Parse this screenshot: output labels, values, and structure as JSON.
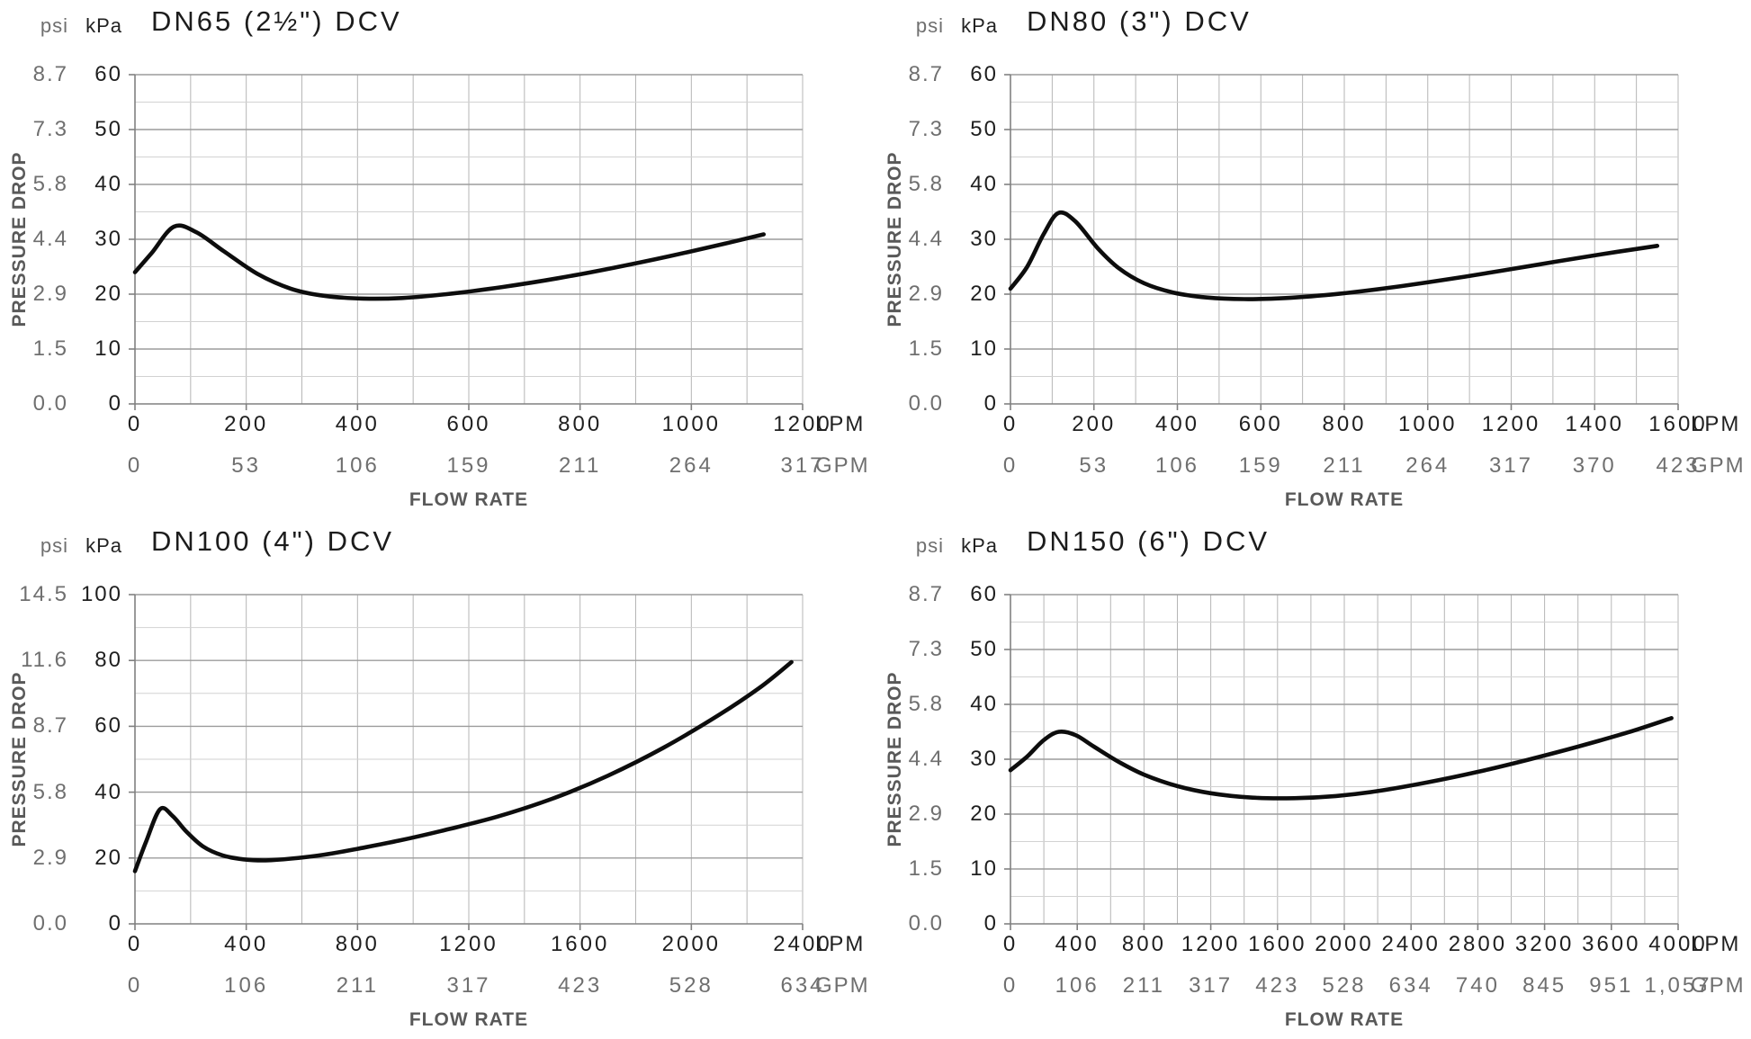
{
  "page": {
    "background": "#ffffff"
  },
  "shared": {
    "pressure_axis_label": "PRESSURE DROP",
    "flow_axis_label": "FLOW RATE",
    "psi_header": "psi",
    "kpa_header": "kPa",
    "lpm_unit": "LPM",
    "gpm_unit": "GPM",
    "colors": {
      "curve": "#0d0d0d",
      "major_grid": "#9c9c9c",
      "minor_grid": "#d2d2d2",
      "vertical_grid": "#b6b6b6",
      "axis": "#808080",
      "black_text": "#1f1f1f",
      "gray_text": "#6f6f6f",
      "axis_label_gray": "#595959"
    }
  },
  "chart_data": [
    {
      "type": "line",
      "title": "DN65 (2½\") DCV",
      "xlabel": "FLOW RATE",
      "ylabel": "PRESSURE DROP",
      "x_units": [
        "LPM",
        "GPM"
      ],
      "y_units": [
        "kPa",
        "psi"
      ],
      "xlim": [
        0,
        1200
      ],
      "ylim": [
        0,
        60
      ],
      "x_minor_step": 100,
      "y_major_step": 10,
      "y_minor_step": 5,
      "lpm_ticks": [
        0,
        200,
        400,
        600,
        800,
        1000,
        1200
      ],
      "gpm_ticks": [
        "0",
        "53",
        "106",
        "159",
        "211",
        "264",
        "317"
      ],
      "kpa_ticks": [
        "60",
        "50",
        "40",
        "30",
        "20",
        "10",
        "0"
      ],
      "psi_ticks": [
        "8.7",
        "7.3",
        "5.8",
        "4.4",
        "2.9",
        "1.5",
        "0.0"
      ],
      "series": [
        {
          "name": "pressure drop (kPa) vs flow (LPM)",
          "points": [
            [
              0,
              24
            ],
            [
              30,
              27.5
            ],
            [
              70,
              32.3
            ],
            [
              110,
              31.3
            ],
            [
              160,
              27.8
            ],
            [
              220,
              23.7
            ],
            [
              280,
              21
            ],
            [
              340,
              19.7
            ],
            [
              410,
              19.2
            ],
            [
              480,
              19.3
            ],
            [
              560,
              20
            ],
            [
              660,
              21.3
            ],
            [
              760,
              22.9
            ],
            [
              860,
              24.8
            ],
            [
              960,
              26.9
            ],
            [
              1060,
              29.2
            ],
            [
              1130,
              30.9
            ]
          ]
        }
      ]
    },
    {
      "type": "line",
      "title": "DN80 (3\") DCV",
      "xlabel": "FLOW RATE",
      "ylabel": "PRESSURE DROP",
      "x_units": [
        "LPM",
        "GPM"
      ],
      "y_units": [
        "kPa",
        "psi"
      ],
      "xlim": [
        0,
        1600
      ],
      "ylim": [
        0,
        60
      ],
      "x_minor_step": 100,
      "y_major_step": 10,
      "y_minor_step": 5,
      "lpm_ticks": [
        0,
        200,
        400,
        600,
        800,
        1000,
        1200,
        1400,
        1600
      ],
      "gpm_ticks": [
        "0",
        "53",
        "106",
        "159",
        "211",
        "264",
        "317",
        "370",
        "423"
      ],
      "kpa_ticks": [
        "60",
        "50",
        "40",
        "30",
        "20",
        "10",
        "0"
      ],
      "psi_ticks": [
        "8.7",
        "7.3",
        "5.8",
        "4.4",
        "2.9",
        "1.5",
        "0.0"
      ],
      "series": [
        {
          "name": "pressure drop (kPa) vs flow (LPM)",
          "points": [
            [
              0,
              21
            ],
            [
              40,
              25
            ],
            [
              80,
              31
            ],
            [
              115,
              34.8
            ],
            [
              155,
              33.3
            ],
            [
              210,
              28.3
            ],
            [
              260,
              24.7
            ],
            [
              320,
              22
            ],
            [
              390,
              20.3
            ],
            [
              470,
              19.4
            ],
            [
              560,
              19.1
            ],
            [
              660,
              19.3
            ],
            [
              790,
              20.1
            ],
            [
              930,
              21.4
            ],
            [
              1090,
              23.2
            ],
            [
              1250,
              25.2
            ],
            [
              1410,
              27.2
            ],
            [
              1550,
              28.8
            ]
          ]
        }
      ]
    },
    {
      "type": "line",
      "title": "DN100 (4\") DCV",
      "xlabel": "FLOW RATE",
      "ylabel": "PRESSURE DROP",
      "x_units": [
        "LPM",
        "GPM"
      ],
      "y_units": [
        "kPa",
        "psi"
      ],
      "xlim": [
        0,
        2400
      ],
      "ylim": [
        0,
        100
      ],
      "x_minor_step": 200,
      "y_major_step": 20,
      "y_minor_step": 10,
      "lpm_ticks": [
        0,
        400,
        800,
        1200,
        1600,
        2000,
        2400
      ],
      "gpm_ticks": [
        "0",
        "106",
        "211",
        "317",
        "423",
        "528",
        "634"
      ],
      "kpa_ticks": [
        "100",
        "80",
        "60",
        "40",
        "20",
        "0"
      ],
      "psi_ticks": [
        "14.5",
        "11.6",
        "8.7",
        "5.8",
        "2.9",
        "0.0"
      ],
      "series": [
        {
          "name": "pressure drop (kPa) vs flow (LPM)",
          "points": [
            [
              0,
              16
            ],
            [
              40,
              25
            ],
            [
              90,
              34.8
            ],
            [
              135,
              32.8
            ],
            [
              185,
              28
            ],
            [
              245,
              23.5
            ],
            [
              315,
              20.8
            ],
            [
              390,
              19.6
            ],
            [
              470,
              19.3
            ],
            [
              560,
              19.8
            ],
            [
              680,
              21
            ],
            [
              800,
              22.8
            ],
            [
              950,
              25.3
            ],
            [
              1100,
              28.2
            ],
            [
              1300,
              32.5
            ],
            [
              1500,
              38
            ],
            [
              1700,
              45
            ],
            [
              1900,
              53.5
            ],
            [
              2100,
              63.5
            ],
            [
              2250,
              72
            ],
            [
              2360,
              79.5
            ]
          ]
        }
      ]
    },
    {
      "type": "line",
      "title": "DN150 (6\") DCV",
      "xlabel": "FLOW RATE",
      "ylabel": "PRESSURE DROP",
      "x_units": [
        "LPM",
        "GPM"
      ],
      "y_units": [
        "kPa",
        "psi"
      ],
      "xlim": [
        0,
        4000
      ],
      "ylim": [
        0,
        60
      ],
      "x_minor_step": 200,
      "y_major_step": 10,
      "y_minor_step": 5,
      "lpm_ticks": [
        0,
        400,
        800,
        1200,
        1600,
        2000,
        2400,
        2800,
        3200,
        3600,
        4000
      ],
      "gpm_ticks": [
        "0",
        "106",
        "211",
        "317",
        "423",
        "528",
        "634",
        "740",
        "845",
        "951",
        "1,057"
      ],
      "kpa_ticks": [
        "60",
        "50",
        "40",
        "30",
        "20",
        "10",
        "0"
      ],
      "psi_ticks": [
        "8.7",
        "7.3",
        "5.8",
        "4.4",
        "2.9",
        "1.5",
        "0.0"
      ],
      "series": [
        {
          "name": "pressure drop (kPa) vs flow (LPM)",
          "points": [
            [
              0,
              28
            ],
            [
              100,
              30.5
            ],
            [
              200,
              33.5
            ],
            [
              290,
              35
            ],
            [
              390,
              34.4
            ],
            [
              500,
              32.3
            ],
            [
              650,
              29.5
            ],
            [
              800,
              27.2
            ],
            [
              1000,
              25.1
            ],
            [
              1200,
              23.8
            ],
            [
              1450,
              23
            ],
            [
              1700,
              22.9
            ],
            [
              1950,
              23.3
            ],
            [
              2200,
              24.2
            ],
            [
              2500,
              25.8
            ],
            [
              2800,
              27.7
            ],
            [
              3100,
              29.9
            ],
            [
              3400,
              32.3
            ],
            [
              3700,
              34.9
            ],
            [
              3960,
              37.5
            ]
          ]
        }
      ]
    }
  ]
}
